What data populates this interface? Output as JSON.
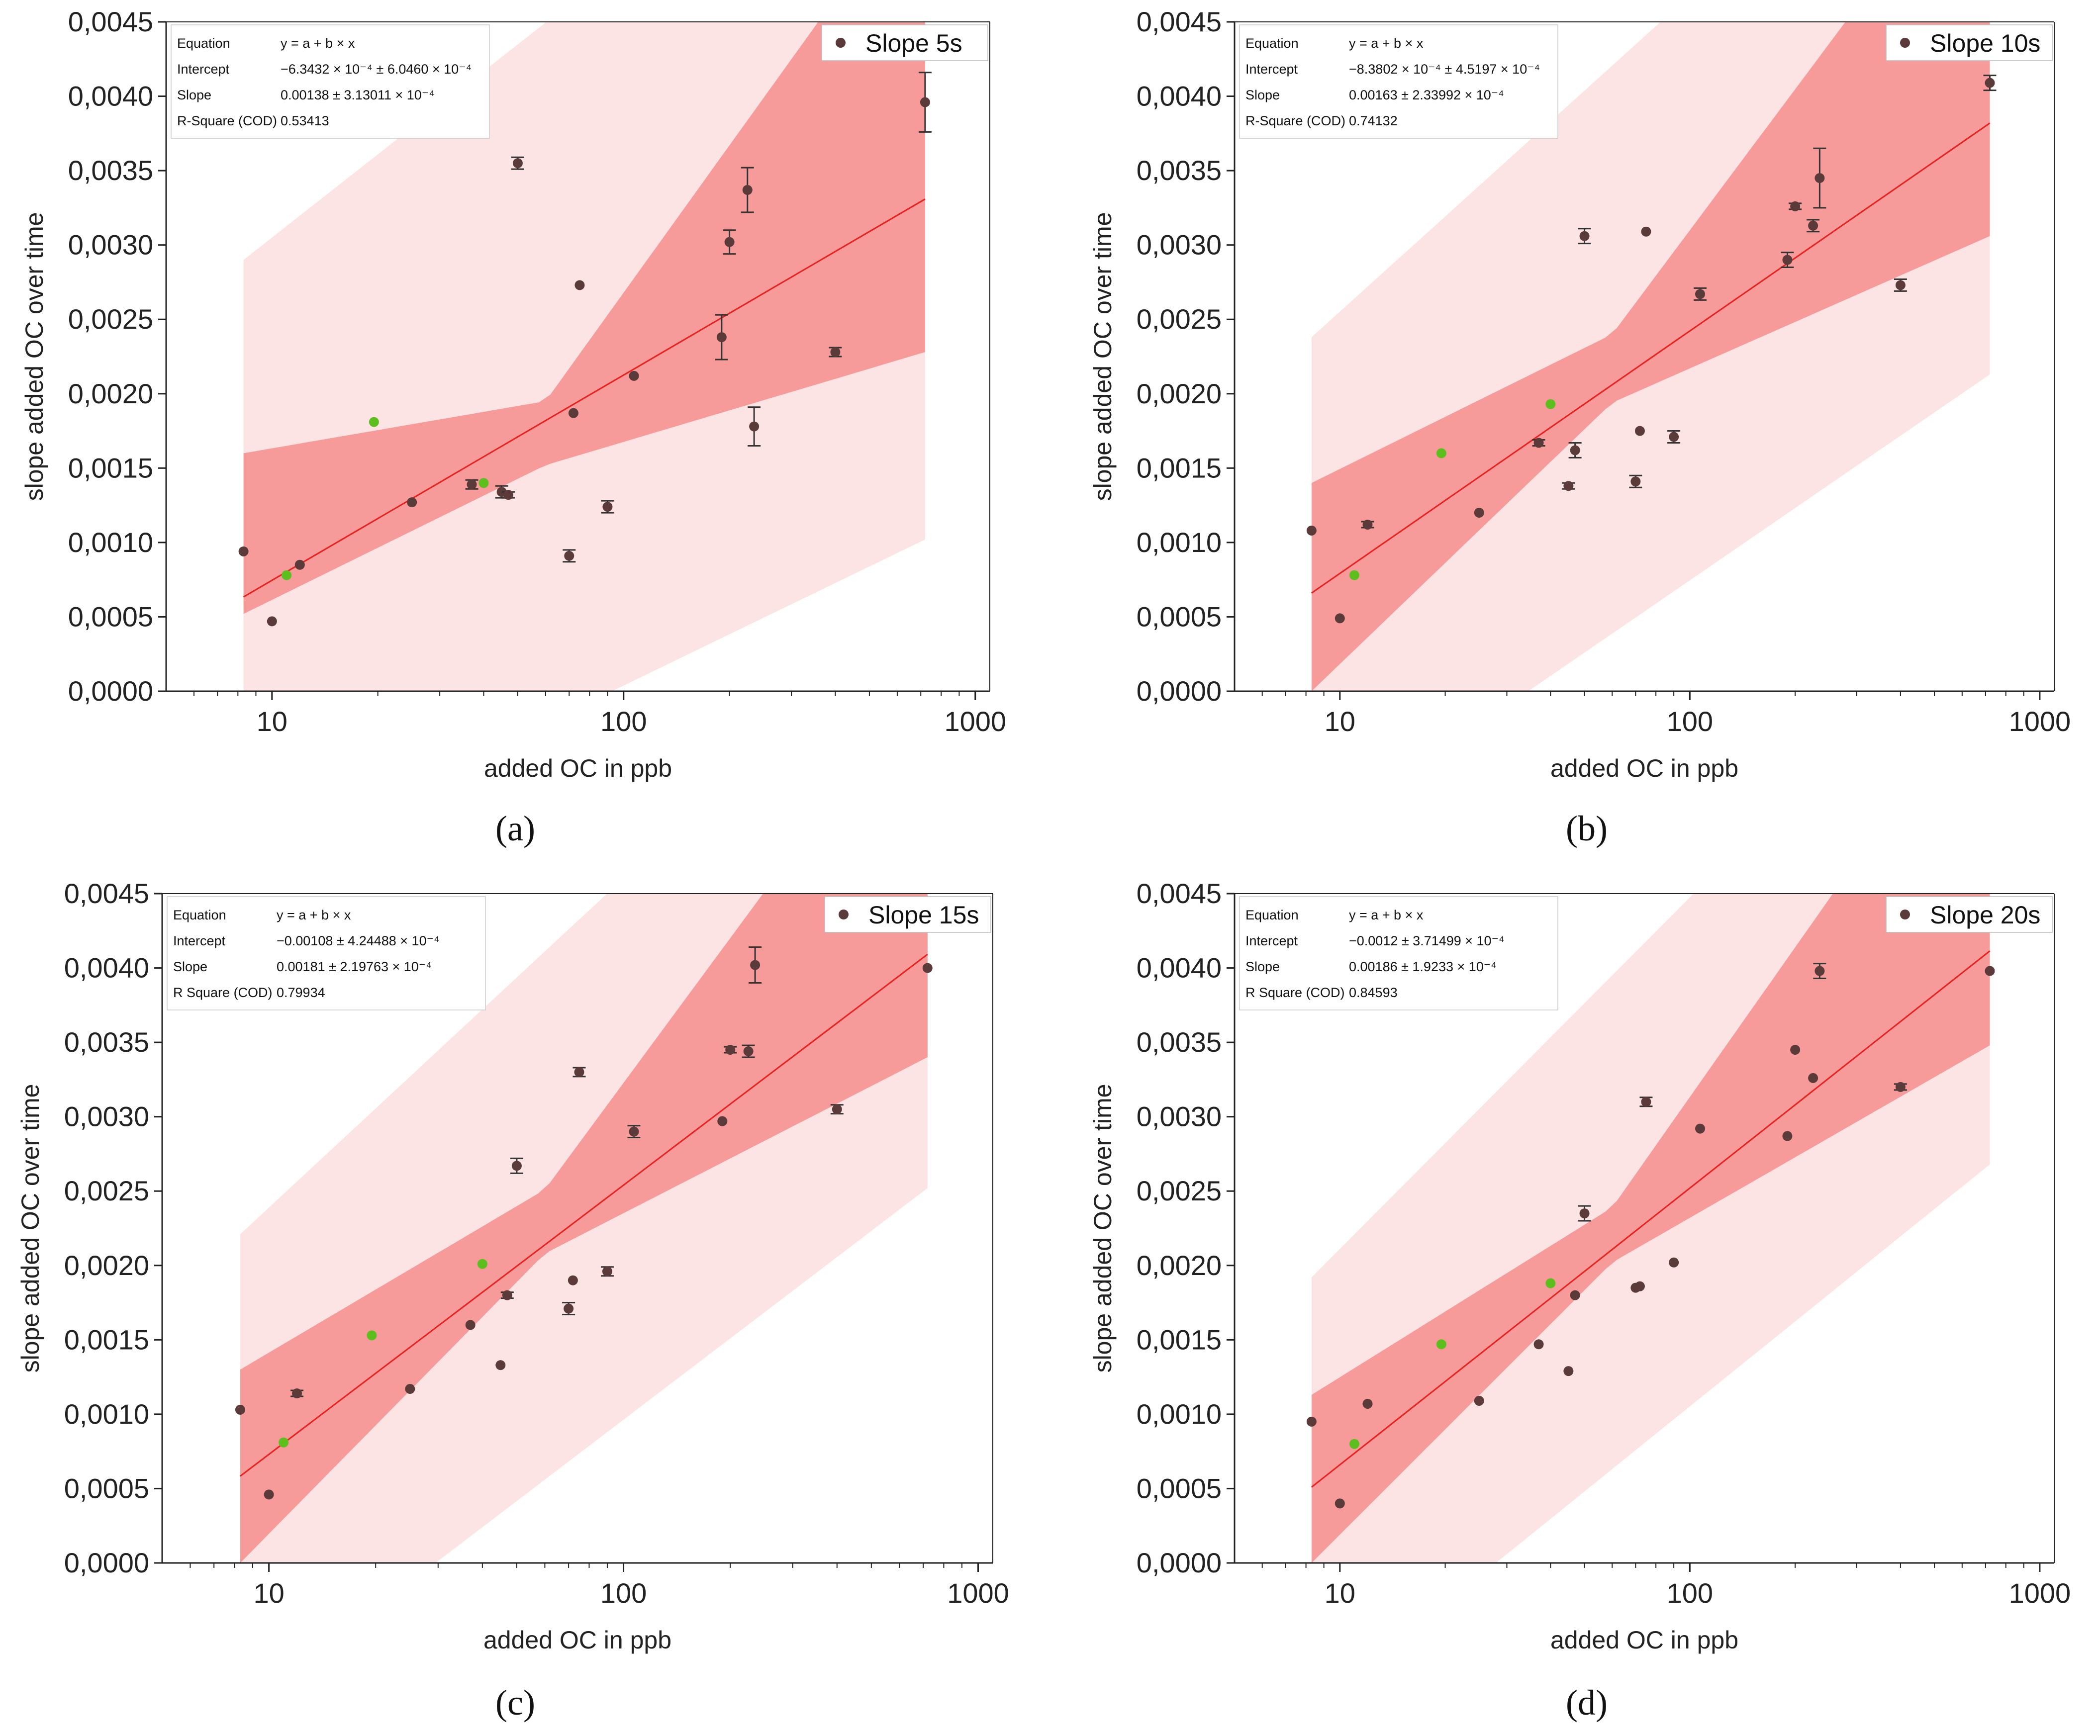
{
  "figure": {
    "colors": {
      "prediction_band": "#fde4e4",
      "confidence_band": "#f79a9a",
      "fit_line": "#e8231f",
      "point": "#5b3a3a",
      "highlight_point": "#5cbf1e",
      "axis": "#222222"
    }
  },
  "chart_data": [
    {
      "type": "scatter",
      "panel_label": "(a)",
      "legend": "Slope 5s",
      "legend_position": "top-right",
      "xlabel": "added OC in ppb",
      "ylabel": "slope added OC over time",
      "x_scale": "log",
      "xlim": [
        5,
        1100
      ],
      "ylim": [
        0,
        0.0045
      ],
      "x_ticks": [
        10,
        100,
        1000
      ],
      "x_tick_labels": [
        "10",
        "100",
        "1000"
      ],
      "y_ticks": [
        0,
        0.0005,
        0.001,
        0.0015,
        0.002,
        0.0025,
        0.003,
        0.0035,
        0.004,
        0.0045
      ],
      "y_tick_labels": [
        "0,0000",
        "0,0005",
        "0,0010",
        "0,0015",
        "0,0020",
        "0,0025",
        "0,0030",
        "0,0035",
        "0,0040",
        "0,0045"
      ],
      "stats": [
        {
          "label": "Equation",
          "value": "y = a + b × x"
        },
        {
          "label": "Intercept",
          "value": "−6.3432 × 10⁻⁴ ± 6.0460 × 10⁻⁴"
        },
        {
          "label": "Slope",
          "value": "0.00138 ± 3.13011 × 10⁻⁴"
        },
        {
          "label": "R-Square (COD)",
          "value": "0.53413"
        }
      ],
      "fit": {
        "a": -0.00063432,
        "b": 0.00138
      },
      "x_range": [
        8.3,
        720
      ],
      "confidence_band": [
        [
          8.3,
          0.00052,
          0.0016
        ],
        [
          60,
          0.00152,
          0.00195
        ],
        [
          720,
          0.00228,
          0.0055
        ]
      ],
      "prediction_band": [
        [
          8.3,
          -0.0012,
          0.0029
        ],
        [
          720,
          0.00102,
          0.0065
        ]
      ],
      "points": [
        {
          "x": 8.3,
          "y": 0.00094,
          "err": 0
        },
        {
          "x": 10,
          "y": 0.00047,
          "err": 0
        },
        {
          "x": 11,
          "y": 0.00078,
          "err": 0,
          "highlight": true
        },
        {
          "x": 12,
          "y": 0.00085,
          "err": 0
        },
        {
          "x": 19.5,
          "y": 0.00181,
          "err": 0,
          "highlight": true
        },
        {
          "x": 25,
          "y": 0.00127,
          "err": 0
        },
        {
          "x": 37,
          "y": 0.00139,
          "err": 3e-05
        },
        {
          "x": 40,
          "y": 0.0014,
          "err": 0,
          "highlight": true
        },
        {
          "x": 45,
          "y": 0.00134,
          "err": 4e-05
        },
        {
          "x": 47,
          "y": 0.00132,
          "err": 2e-05
        },
        {
          "x": 50,
          "y": 0.00355,
          "err": 4e-05
        },
        {
          "x": 70,
          "y": 0.00091,
          "err": 4e-05
        },
        {
          "x": 72,
          "y": 0.00187,
          "err": 0
        },
        {
          "x": 75,
          "y": 0.00273,
          "err": 0
        },
        {
          "x": 90,
          "y": 0.00124,
          "err": 4e-05
        },
        {
          "x": 107,
          "y": 0.00212,
          "err": 0
        },
        {
          "x": 190,
          "y": 0.00238,
          "err": 0.00015
        },
        {
          "x": 200,
          "y": 0.00302,
          "err": 8e-05
        },
        {
          "x": 225,
          "y": 0.00337,
          "err": 0.00015
        },
        {
          "x": 235,
          "y": 0.00178,
          "err": 0.00013
        },
        {
          "x": 400,
          "y": 0.00228,
          "err": 3e-05
        },
        {
          "x": 720,
          "y": 0.00396,
          "err": 0.0002
        }
      ]
    },
    {
      "type": "scatter",
      "panel_label": "(b)",
      "legend": "Slope 10s",
      "legend_position": "top-right",
      "xlabel": "added OC in ppb",
      "ylabel": "slope added OC over time",
      "x_scale": "log",
      "xlim": [
        5,
        1100
      ],
      "ylim": [
        0,
        0.0045
      ],
      "x_ticks": [
        10,
        100,
        1000
      ],
      "x_tick_labels": [
        "10",
        "100",
        "1000"
      ],
      "y_ticks": [
        0,
        0.0005,
        0.001,
        0.0015,
        0.002,
        0.0025,
        0.003,
        0.0035,
        0.004,
        0.0045
      ],
      "y_tick_labels": [
        "0,0000",
        "0,0005",
        "0,0010",
        "0,0015",
        "0,0020",
        "0,0025",
        "0,0030",
        "0,0035",
        "0,0040",
        "0,0045"
      ],
      "stats": [
        {
          "label": "Equation",
          "value": "y = a + b × x"
        },
        {
          "label": "Intercept",
          "value": "−8.3802 × 10⁻⁴ ± 4.5197 × 10⁻⁴"
        },
        {
          "label": "Slope",
          "value": "0.00163 ± 2.33992 × 10⁻⁴"
        },
        {
          "label": "R-Square (COD)",
          "value": "0.74132"
        }
      ],
      "fit": {
        "a": -0.00083802,
        "b": 0.00163
      },
      "x_range": [
        8.3,
        720
      ],
      "confidence_band": [
        [
          8.3,
          0.0,
          0.0014
        ],
        [
          60,
          0.00194,
          0.0024
        ],
        [
          720,
          0.00306,
          0.0058
        ]
      ],
      "prediction_band": [
        [
          8.3,
          -0.001,
          0.00238
        ],
        [
          720,
          0.00213,
          0.0065
        ]
      ],
      "points": [
        {
          "x": 8.3,
          "y": 0.00108,
          "err": 0
        },
        {
          "x": 10,
          "y": 0.00049,
          "err": 0
        },
        {
          "x": 11,
          "y": 0.00078,
          "err": 0,
          "highlight": true
        },
        {
          "x": 12,
          "y": 0.00112,
          "err": 2e-05
        },
        {
          "x": 19.5,
          "y": 0.0016,
          "err": 0,
          "highlight": true
        },
        {
          "x": 25,
          "y": 0.0012,
          "err": 0
        },
        {
          "x": 37,
          "y": 0.00167,
          "err": 2e-05
        },
        {
          "x": 40,
          "y": 0.00193,
          "err": 0,
          "highlight": true
        },
        {
          "x": 45,
          "y": 0.00138,
          "err": 2e-05
        },
        {
          "x": 47,
          "y": 0.00162,
          "err": 5e-05
        },
        {
          "x": 50,
          "y": 0.00306,
          "err": 5e-05
        },
        {
          "x": 70,
          "y": 0.00141,
          "err": 4e-05
        },
        {
          "x": 72,
          "y": 0.00175,
          "err": 0
        },
        {
          "x": 75,
          "y": 0.00309,
          "err": 0
        },
        {
          "x": 90,
          "y": 0.00171,
          "err": 4e-05
        },
        {
          "x": 107,
          "y": 0.00267,
          "err": 4e-05
        },
        {
          "x": 190,
          "y": 0.0029,
          "err": 5e-05
        },
        {
          "x": 200,
          "y": 0.00326,
          "err": 2e-05
        },
        {
          "x": 225,
          "y": 0.00313,
          "err": 4e-05
        },
        {
          "x": 235,
          "y": 0.00345,
          "err": 0.0002
        },
        {
          "x": 400,
          "y": 0.00273,
          "err": 4e-05
        },
        {
          "x": 720,
          "y": 0.00409,
          "err": 5e-05
        }
      ]
    },
    {
      "type": "scatter",
      "panel_label": "(c)",
      "legend": "Slope 15s",
      "legend_position": "top-right",
      "xlabel": "added OC in ppb",
      "ylabel": "slope added OC over time",
      "x_scale": "log",
      "xlim": [
        5,
        1100
      ],
      "ylim": [
        0,
        0.0045
      ],
      "x_ticks": [
        10,
        100,
        1000
      ],
      "x_tick_labels": [
        "10",
        "100",
        "1000"
      ],
      "y_ticks": [
        0,
        0.0005,
        0.001,
        0.0015,
        0.002,
        0.0025,
        0.003,
        0.0035,
        0.004,
        0.0045
      ],
      "y_tick_labels": [
        "0,0000",
        "0,0005",
        "0,0010",
        "0,0015",
        "0,0020",
        "0,0025",
        "0,0030",
        "0,0035",
        "0,0040",
        "0,0045"
      ],
      "stats": [
        {
          "label": "Equation",
          "value": "y = a + b × x"
        },
        {
          "label": "Intercept",
          "value": "−0.00108 ± 4.24488 × 10⁻⁴"
        },
        {
          "label": "Slope",
          "value": "0.00181 ± 2.19763 × 10⁻⁴"
        },
        {
          "label": "R Square (COD)",
          "value": "0.79934"
        }
      ],
      "fit": {
        "a": -0.00108,
        "b": 0.00181
      },
      "x_range": [
        8.3,
        720
      ],
      "confidence_band": [
        [
          8.3,
          0.0,
          0.0013
        ],
        [
          60,
          0.00208,
          0.00251
        ],
        [
          720,
          0.0034,
          0.006
        ]
      ],
      "prediction_band": [
        [
          8.3,
          -0.001,
          0.00221
        ],
        [
          720,
          0.00252,
          0.0065
        ]
      ],
      "points": [
        {
          "x": 8.3,
          "y": 0.00103,
          "err": 0
        },
        {
          "x": 10,
          "y": 0.00046,
          "err": 0
        },
        {
          "x": 11,
          "y": 0.00081,
          "err": 0,
          "highlight": true
        },
        {
          "x": 12,
          "y": 0.00114,
          "err": 2e-05
        },
        {
          "x": 19.5,
          "y": 0.00153,
          "err": 0,
          "highlight": true
        },
        {
          "x": 25,
          "y": 0.00117,
          "err": 0
        },
        {
          "x": 37,
          "y": 0.0016,
          "err": 0
        },
        {
          "x": 40,
          "y": 0.00201,
          "err": 0,
          "highlight": true
        },
        {
          "x": 45,
          "y": 0.00133,
          "err": 0
        },
        {
          "x": 47,
          "y": 0.0018,
          "err": 2e-05
        },
        {
          "x": 50,
          "y": 0.00267,
          "err": 5e-05
        },
        {
          "x": 70,
          "y": 0.00171,
          "err": 4e-05
        },
        {
          "x": 72,
          "y": 0.0019,
          "err": 0
        },
        {
          "x": 75,
          "y": 0.0033,
          "err": 3e-05
        },
        {
          "x": 90,
          "y": 0.00196,
          "err": 3e-05
        },
        {
          "x": 107,
          "y": 0.0029,
          "err": 4e-05
        },
        {
          "x": 190,
          "y": 0.00297,
          "err": 0
        },
        {
          "x": 200,
          "y": 0.00345,
          "err": 2e-05
        },
        {
          "x": 225,
          "y": 0.00344,
          "err": 4e-05
        },
        {
          "x": 235,
          "y": 0.00402,
          "err": 0.00012
        },
        {
          "x": 400,
          "y": 0.00305,
          "err": 3e-05
        },
        {
          "x": 720,
          "y": 0.004,
          "err": 0
        }
      ]
    },
    {
      "type": "scatter",
      "panel_label": "(d)",
      "legend": "Slope 20s",
      "legend_position": "top-right",
      "xlabel": "added OC in ppb",
      "ylabel": "slope added OC over time",
      "x_scale": "log",
      "xlim": [
        5,
        1100
      ],
      "ylim": [
        0,
        0.0045
      ],
      "x_ticks": [
        10,
        100,
        1000
      ],
      "x_tick_labels": [
        "10",
        "100",
        "1000"
      ],
      "y_ticks": [
        0,
        0.0005,
        0.001,
        0.0015,
        0.002,
        0.0025,
        0.003,
        0.0035,
        0.004,
        0.0045
      ],
      "y_tick_labels": [
        "0,0000",
        "0,0005",
        "0,0010",
        "0,0015",
        "0,0020",
        "0,0025",
        "0,0030",
        "0,0035",
        "0,0040",
        "0,0045"
      ],
      "stats": [
        {
          "label": "Equation",
          "value": "y = a + b × x"
        },
        {
          "label": "Intercept",
          "value": "−0.0012 ± 3.71499 × 10⁻⁴"
        },
        {
          "label": "Slope",
          "value": "0.00186 ± 1.9233 × 10⁻⁴"
        },
        {
          "label": "R Square (COD)",
          "value": "0.84593"
        }
      ],
      "fit": {
        "a": -0.0012,
        "b": 0.00186
      },
      "x_range": [
        8.3,
        720
      ],
      "confidence_band": [
        [
          8.3,
          0.0,
          0.00113
        ],
        [
          60,
          0.00202,
          0.00239
        ],
        [
          720,
          0.00348,
          0.006
        ]
      ],
      "prediction_band": [
        [
          8.3,
          -0.001,
          0.00192
        ],
        [
          720,
          0.00268,
          0.0065
        ]
      ],
      "points": [
        {
          "x": 8.3,
          "y": 0.00095,
          "err": 0
        },
        {
          "x": 10,
          "y": 0.0004,
          "err": 0
        },
        {
          "x": 11,
          "y": 0.0008,
          "err": 0,
          "highlight": true
        },
        {
          "x": 12,
          "y": 0.00107,
          "err": 0
        },
        {
          "x": 19.5,
          "y": 0.00147,
          "err": 0,
          "highlight": true
        },
        {
          "x": 25,
          "y": 0.00109,
          "err": 0
        },
        {
          "x": 37,
          "y": 0.00147,
          "err": 0
        },
        {
          "x": 40,
          "y": 0.00188,
          "err": 0,
          "highlight": true
        },
        {
          "x": 45,
          "y": 0.00129,
          "err": 0
        },
        {
          "x": 47,
          "y": 0.0018,
          "err": 0
        },
        {
          "x": 50,
          "y": 0.00235,
          "err": 5e-05
        },
        {
          "x": 70,
          "y": 0.00185,
          "err": 0
        },
        {
          "x": 72,
          "y": 0.00186,
          "err": 0
        },
        {
          "x": 75,
          "y": 0.0031,
          "err": 3e-05
        },
        {
          "x": 90,
          "y": 0.00202,
          "err": 0
        },
        {
          "x": 107,
          "y": 0.00292,
          "err": 0
        },
        {
          "x": 190,
          "y": 0.00287,
          "err": 0
        },
        {
          "x": 200,
          "y": 0.00345,
          "err": 0
        },
        {
          "x": 225,
          "y": 0.00326,
          "err": 0
        },
        {
          "x": 235,
          "y": 0.00398,
          "err": 5e-05
        },
        {
          "x": 400,
          "y": 0.0032,
          "err": 2e-05
        },
        {
          "x": 720,
          "y": 0.00398,
          "err": 0
        }
      ]
    }
  ]
}
